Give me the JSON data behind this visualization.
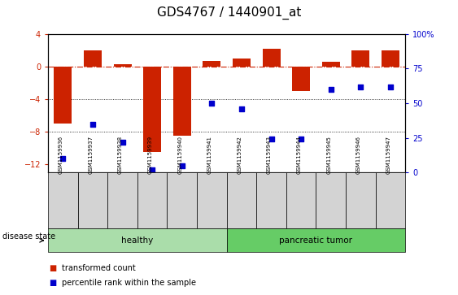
{
  "title": "GDS4767 / 1440901_at",
  "samples": [
    "GSM1159936",
    "GSM1159937",
    "GSM1159938",
    "GSM1159939",
    "GSM1159940",
    "GSM1159941",
    "GSM1159942",
    "GSM1159943",
    "GSM1159944",
    "GSM1159945",
    "GSM1159946",
    "GSM1159947"
  ],
  "bar_values": [
    -7.0,
    2.0,
    0.3,
    -10.5,
    -8.5,
    0.7,
    1.0,
    2.2,
    -3.0,
    0.6,
    2.0,
    2.0
  ],
  "percentile_values": [
    10,
    35,
    22,
    2,
    5,
    50,
    46,
    24,
    24,
    60,
    62,
    62
  ],
  "bar_color": "#cc2200",
  "scatter_color": "#0000cc",
  "ylim_left": [
    -13,
    4
  ],
  "ylim_right": [
    0,
    100
  ],
  "yticks_left": [
    4,
    0,
    -4,
    -8,
    -12
  ],
  "yticks_right": [
    100,
    75,
    50,
    25,
    0
  ],
  "groups": [
    {
      "label": "healthy",
      "start": 0,
      "end": 6,
      "color": "#aaddaa"
    },
    {
      "label": "pancreatic tumor",
      "start": 6,
      "end": 12,
      "color": "#66cc66"
    }
  ],
  "disease_state_label": "disease state",
  "legend_bar_label": "transformed count",
  "legend_scatter_label": "percentile rank within the sample",
  "background_color": "#ffffff",
  "tick_label_fontsize": 7,
  "title_fontsize": 11,
  "label_bg": "#d3d3d3"
}
